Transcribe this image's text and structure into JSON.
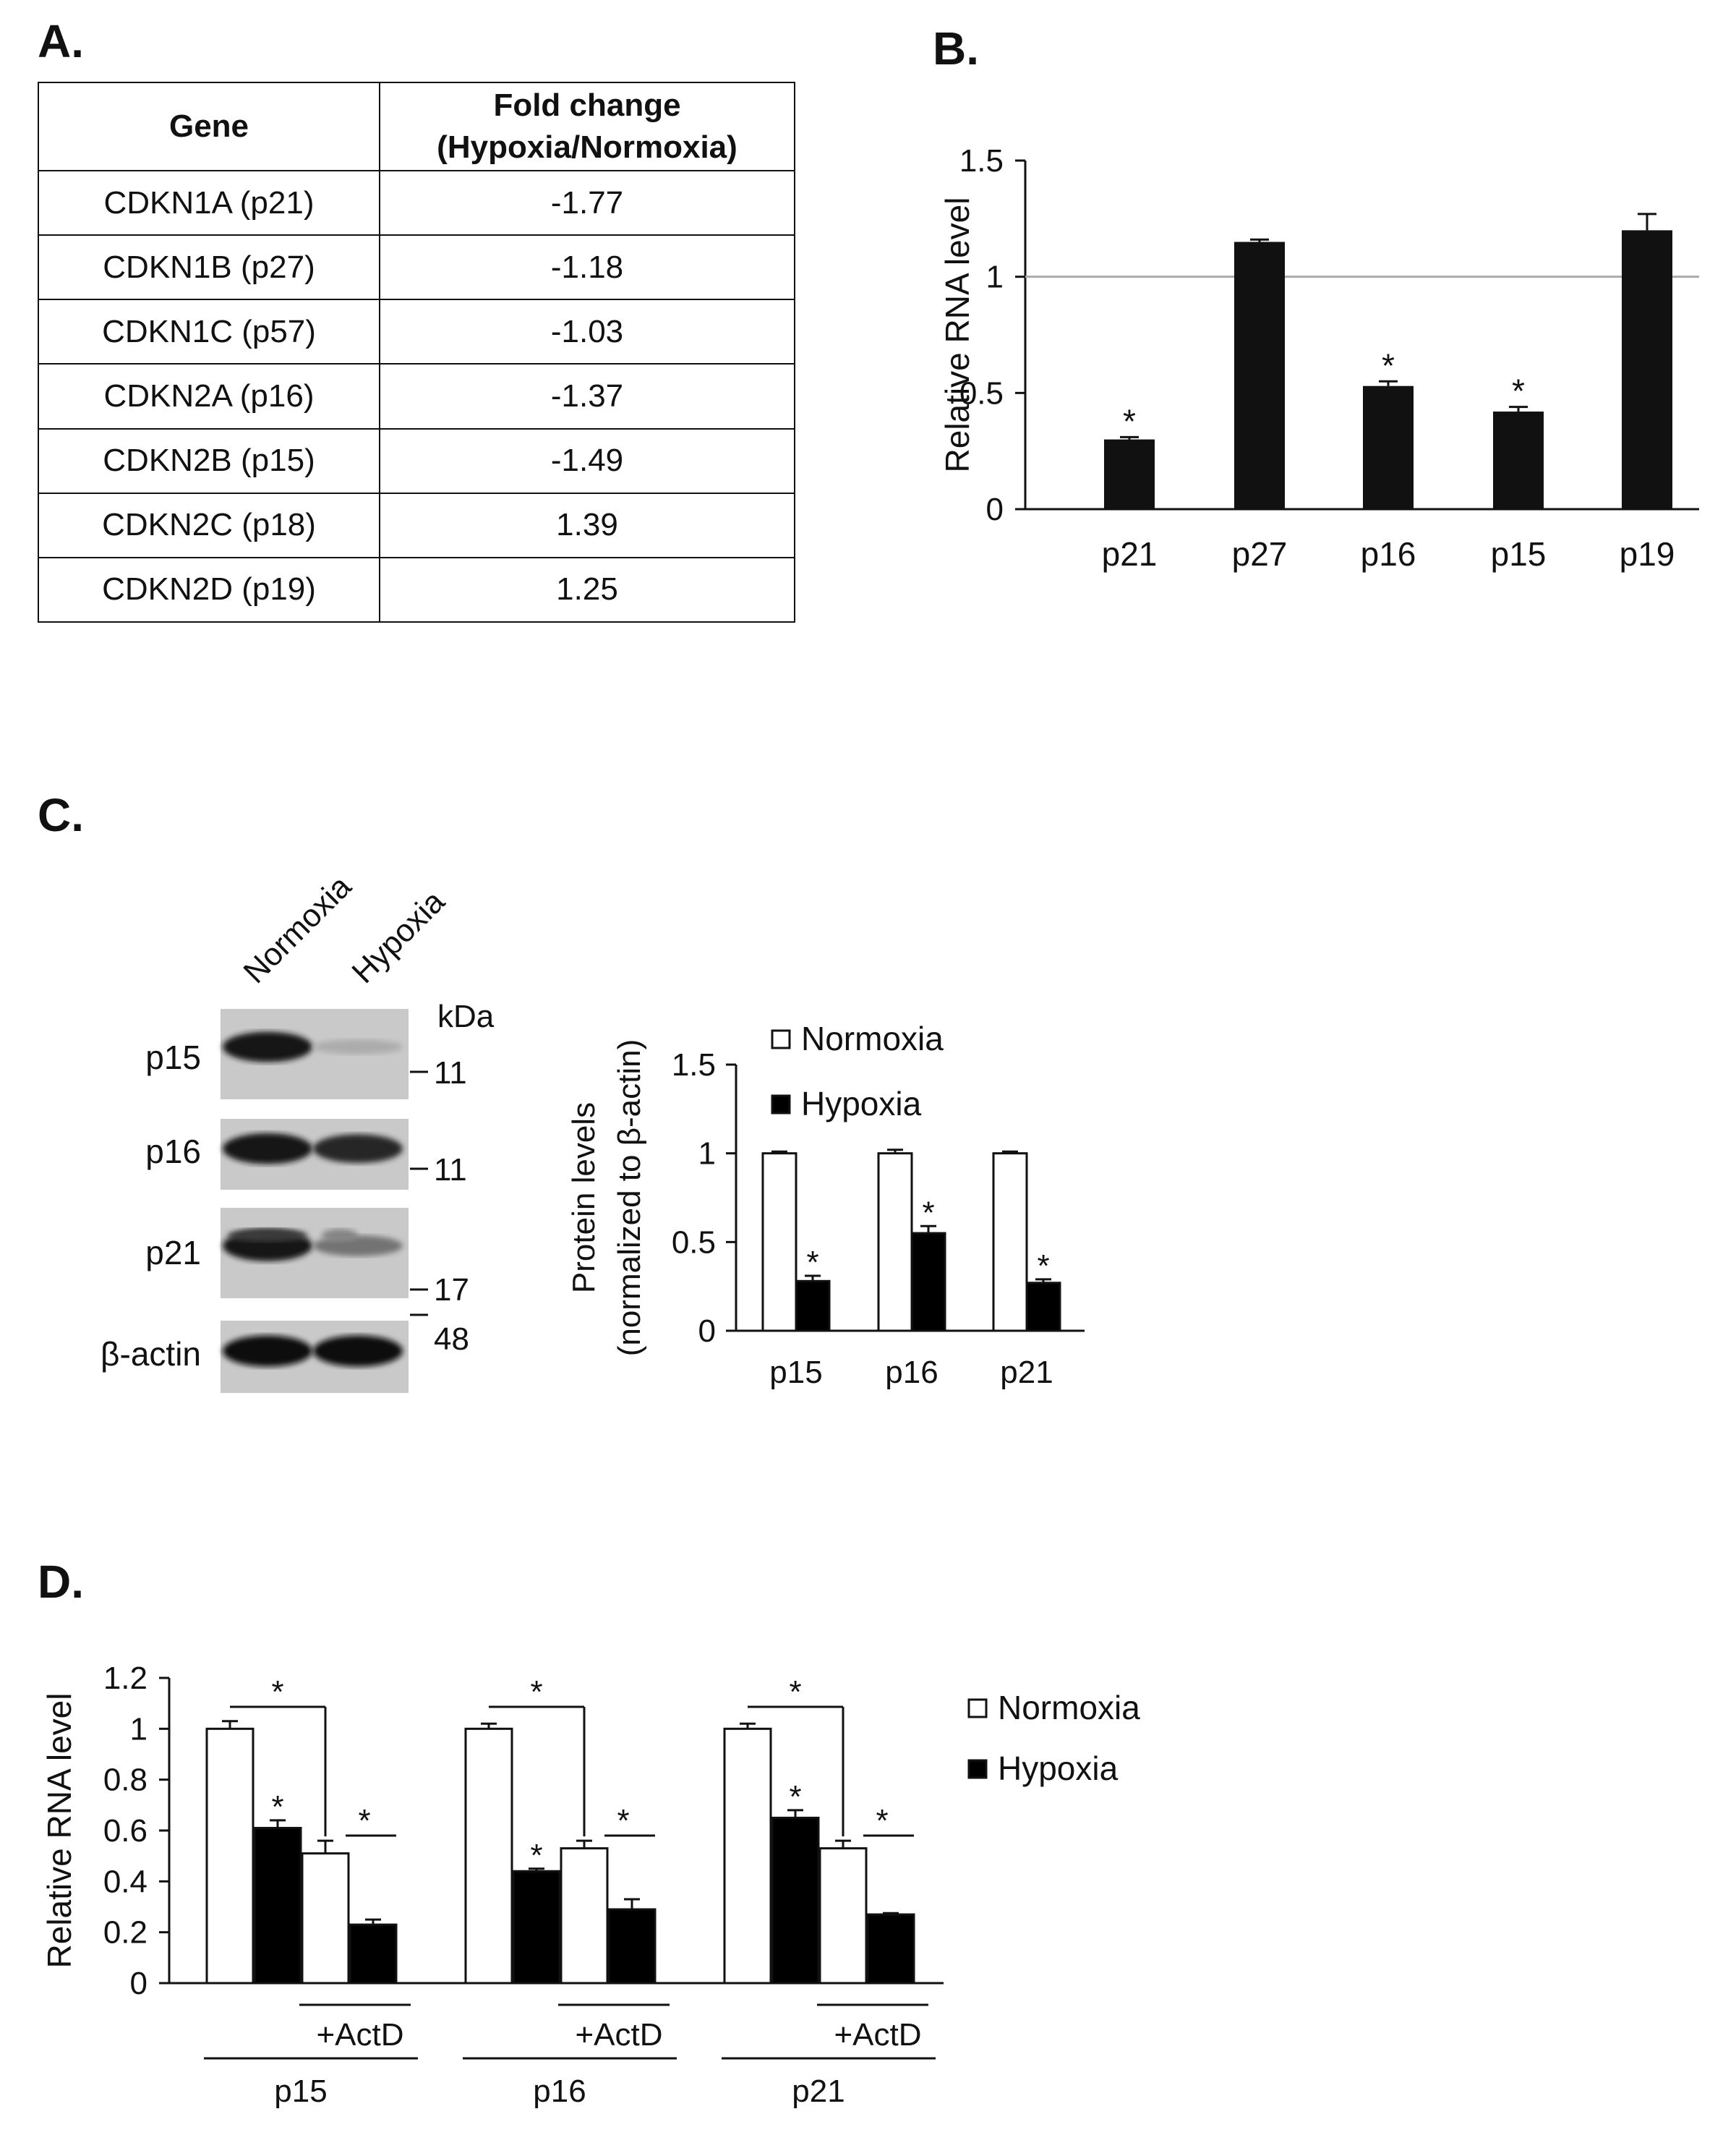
{
  "panels": {
    "a": "A.",
    "b": "B.",
    "c": "C.",
    "d": "D."
  },
  "table": {
    "header_gene": "Gene",
    "header_fold_line1": "Fold change",
    "header_fold_line2": "(Hypoxia/Normoxia)",
    "rows": [
      {
        "gene": "CDKN1A (p21)",
        "fold": "-1.77"
      },
      {
        "gene": "CDKN1B (p27)",
        "fold": "-1.18"
      },
      {
        "gene": "CDKN1C (p57)",
        "fold": "-1.03"
      },
      {
        "gene": "CDKN2A (p16)",
        "fold": "-1.37"
      },
      {
        "gene": "CDKN2B (p15)",
        "fold": "-1.49"
      },
      {
        "gene": "CDKN2C (p18)",
        "fold": "1.39"
      },
      {
        "gene": "CDKN2D (p19)",
        "fold": "1.25"
      }
    ]
  },
  "chart_data": [
    {
      "id": "B",
      "type": "bar",
      "ylabel": "Relative RNA level",
      "ylim": [
        0,
        1.5
      ],
      "yticks": [
        "0",
        "0.5",
        "1",
        "1.5"
      ],
      "reference_line": 1,
      "categories": [
        "p21",
        "p27",
        "p16",
        "p15",
        "p19"
      ],
      "values": [
        0.3,
        1.15,
        0.53,
        0.42,
        1.2
      ],
      "errors": [
        0.01,
        0.01,
        0.02,
        0.02,
        0.07
      ],
      "significant": [
        true,
        false,
        true,
        true,
        false
      ],
      "sig_marker": "*"
    },
    {
      "id": "C",
      "type": "bar",
      "ylabel_line1": "Protein levels",
      "ylabel_line2": "(normalized to β-actin)",
      "ylim": [
        0,
        1.5
      ],
      "yticks": [
        "0",
        "0.5",
        "1",
        "1.5"
      ],
      "categories": [
        "p15",
        "p16",
        "p21"
      ],
      "series": [
        {
          "name": "Normoxia",
          "color": "#ffffff",
          "values": [
            1.0,
            1.0,
            1.0
          ],
          "errors": [
            0.01,
            0.02,
            0.01
          ]
        },
        {
          "name": "Hypoxia",
          "color": "#000000",
          "values": [
            0.28,
            0.55,
            0.27
          ],
          "errors": [
            0.03,
            0.04,
            0.02
          ]
        }
      ],
      "significant_series": "Hypoxia",
      "sig_marker": "*"
    },
    {
      "id": "D",
      "type": "bar",
      "ylabel": "Relative RNA level",
      "ylim": [
        0,
        1.2
      ],
      "yticks": [
        "0",
        "0.2",
        "0.4",
        "0.6",
        "0.8",
        "1",
        "1.2"
      ],
      "groups": [
        "p15",
        "p16",
        "p21"
      ],
      "treatment_label": "+ActD",
      "series": [
        {
          "name": "Normoxia",
          "color": "#ffffff"
        },
        {
          "name": "Hypoxia",
          "color": "#000000"
        }
      ],
      "values": {
        "p15": {
          "normoxia": 1.0,
          "hypoxia": 0.61,
          "normoxia_actd": 0.51,
          "hypoxia_actd": 0.23
        },
        "p16": {
          "normoxia": 1.0,
          "hypoxia": 0.44,
          "normoxia_actd": 0.53,
          "hypoxia_actd": 0.29
        },
        "p21": {
          "normoxia": 1.0,
          "hypoxia": 0.65,
          "normoxia_actd": 0.53,
          "hypoxia_actd": 0.27
        }
      },
      "errors": {
        "p15": {
          "normoxia": 0.03,
          "hypoxia": 0.03,
          "normoxia_actd": 0.05,
          "hypoxia_actd": 0.02
        },
        "p16": {
          "normoxia": 0.02,
          "hypoxia": 0.01,
          "normoxia_actd": 0.03,
          "hypoxia_actd": 0.04
        },
        "p21": {
          "normoxia": 0.02,
          "hypoxia": 0.03,
          "normoxia_actd": 0.03,
          "hypoxia_actd": 0.005
        }
      },
      "sig_marker": "*"
    }
  ],
  "western": {
    "lanes": [
      "Normoxia",
      "Hypoxia"
    ],
    "kda_label": "kDa",
    "blots": [
      {
        "name": "p15",
        "marker": "11",
        "intensity": [
          0.92,
          0.15
        ]
      },
      {
        "name": "p16",
        "marker": "11",
        "intensity": [
          0.95,
          0.85
        ]
      },
      {
        "name": "p21",
        "marker": "17",
        "intensity": [
          0.95,
          0.45
        ]
      },
      {
        "name": "β-actin",
        "marker": "48",
        "intensity": [
          0.97,
          0.97
        ]
      }
    ]
  }
}
